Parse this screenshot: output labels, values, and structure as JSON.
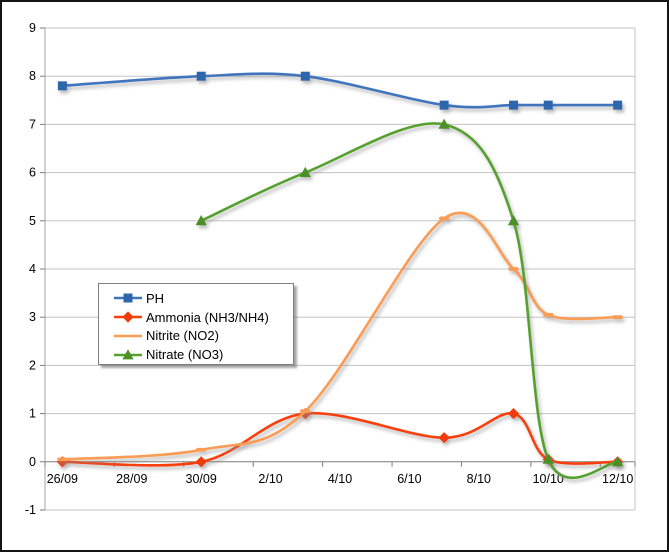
{
  "chart_data": {
    "type": "line",
    "smoothed": true,
    "categories": [
      "26/09",
      "27/09",
      "28/09",
      "29/09",
      "30/09",
      "1/10",
      "2/10",
      "3/10",
      "4/10",
      "5/10",
      "6/10",
      "7/10",
      "8/10",
      "9/10",
      "10/10",
      "11/10",
      "12/10"
    ],
    "x_tick_labels": [
      "26/09",
      "28/09",
      "30/09",
      "2/10",
      "4/10",
      "6/10",
      "8/10",
      "10/10",
      "12/10"
    ],
    "y_ticks": [
      -1,
      0,
      1,
      2,
      3,
      4,
      5,
      6,
      7,
      8,
      9
    ],
    "y_min": -1,
    "y_max": 9,
    "grid": true,
    "legend_position": "middle-left",
    "colors": {
      "gridline": "#c3c3c3",
      "axis": "#a3a3a3",
      "zero_axis": "#7d7d7d",
      "tick_text": "#000000"
    },
    "series": [
      {
        "name": "PH",
        "color": "#3f74bd",
        "marker": "square",
        "marker_color": "#2e66ad",
        "points": [
          [
            "26/09",
            7.8
          ],
          [
            "30/09",
            8.0
          ],
          [
            "3/10",
            8.0
          ],
          [
            "7/10",
            7.4
          ],
          [
            "9/10",
            7.4
          ],
          [
            "10/10",
            7.4
          ],
          [
            "12/10",
            7.4
          ]
        ]
      },
      {
        "name": "Ammonia (NH3/NH4)",
        "color": "#f8400a",
        "marker": "diamond",
        "marker_color": "#f03a07",
        "points": [
          [
            "26/09",
            0.0
          ],
          [
            "30/09",
            0.0
          ],
          [
            "3/10",
            1.0
          ],
          [
            "7/10",
            0.5
          ],
          [
            "9/10",
            1.0
          ],
          [
            "10/10",
            0.05
          ],
          [
            "12/10",
            0.0
          ]
        ]
      },
      {
        "name": "Nitrite (NO2)",
        "color": "#fb9c54",
        "marker": "dash",
        "marker_color": "#fb9c54",
        "points": [
          [
            "26/09",
            0.05
          ],
          [
            "30/09",
            0.25
          ],
          [
            "3/10",
            1.05
          ],
          [
            "7/10",
            5.05
          ],
          [
            "9/10",
            4.0
          ],
          [
            "10/10",
            3.05
          ],
          [
            "12/10",
            3.0
          ]
        ]
      },
      {
        "name": "Nitrate (NO3)",
        "color": "#57a12d",
        "marker": "triangle",
        "marker_color": "#4c9026",
        "points": [
          [
            "30/09",
            5.0
          ],
          [
            "3/10",
            6.0
          ],
          [
            "7/10",
            7.0
          ],
          [
            "9/10",
            5.0
          ],
          [
            "10/10",
            0.05
          ],
          [
            "12/10",
            0.0
          ]
        ]
      }
    ]
  }
}
